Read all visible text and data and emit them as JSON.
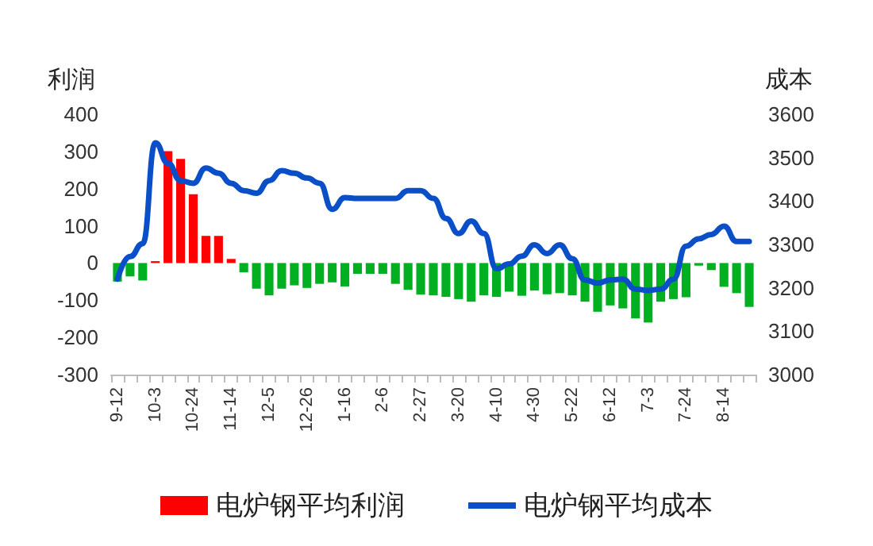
{
  "chart_data": {
    "type": "bar",
    "ylabel": "利润",
    "y2label": "成本",
    "categories": [
      "9-12",
      null,
      null,
      "10-3",
      null,
      null,
      "10-24",
      null,
      null,
      "11-14",
      null,
      null,
      "12-5",
      null,
      null,
      "12-26",
      null,
      null,
      "1-16",
      null,
      null,
      "2-6",
      null,
      null,
      "2-27",
      null,
      null,
      "3-20",
      null,
      null,
      "4-10",
      null,
      null,
      "4-30",
      null,
      null,
      "5-22",
      null,
      null,
      "6-12",
      null,
      null,
      "7-3",
      null,
      null,
      "7-24",
      null,
      null,
      "8-14",
      null,
      null
    ],
    "series": [
      {
        "name": "电炉钢平均利润",
        "color": "#ff0000",
        "colors": [
          "#00b020",
          "#00b020",
          "#00b020",
          "#ff0000",
          "#ff0000",
          "#ff0000",
          "#ff0000",
          "#ff0000",
          "#ff0000",
          "#ff0000",
          "#00b020",
          "#00b020",
          "#00b020",
          "#00b020",
          "#00b020",
          "#00b020",
          "#00b020",
          "#00b020",
          "#00b020",
          "#00b020",
          "#00b020",
          "#00b020",
          "#00b020",
          "#00b020",
          "#00b020",
          "#00b020",
          "#00b020",
          "#00b020",
          "#00b020",
          "#00b020",
          "#00b020",
          "#00b020",
          "#00b020",
          "#00b020",
          "#00b020",
          "#00b020",
          "#00b020",
          "#00b020",
          "#00b020",
          "#00b020",
          "#00b020",
          "#00b020",
          "#00b020",
          "#00b020",
          "#00b020",
          "#00b020",
          "#00b020",
          "#00b020",
          "#00b020",
          "#00b020",
          "#00b020"
        ],
        "values": [
          -50,
          -36,
          -47,
          5,
          301,
          280,
          185,
          73,
          73,
          11,
          -25,
          -69,
          -87,
          -69,
          -60,
          -67,
          -56,
          -52,
          -63,
          -29,
          -29,
          -29,
          -56,
          -72,
          -85,
          -87,
          -91,
          -97,
          -104,
          -87,
          -91,
          -77,
          -88,
          -74,
          -84,
          -81,
          -87,
          -104,
          -131,
          -114,
          -122,
          -149,
          -160,
          -104,
          -97,
          -92,
          -7,
          -19,
          -64,
          -81,
          -118
        ]
      },
      {
        "name": "电炉钢平均成本",
        "type": "line",
        "axis": "y2",
        "color": "#0a4fc8",
        "values": [
          3220,
          3272,
          3302,
          3534,
          3487,
          3447,
          3441,
          3476,
          3464,
          3441,
          3424,
          3418,
          3447,
          3470,
          3464,
          3453,
          3441,
          3381,
          3408,
          3406,
          3406,
          3406,
          3406,
          3424,
          3424,
          3406,
          3360,
          3325,
          3354,
          3325,
          3244,
          3255,
          3273,
          3299,
          3279,
          3299,
          3267,
          3218,
          3211,
          3218,
          3220,
          3197,
          3194,
          3197,
          3220,
          3296,
          3313,
          3323,
          3342,
          3307,
          3307
        ]
      }
    ],
    "ylim": [
      -300,
      400
    ],
    "yticks": [
      -300,
      -200,
      -100,
      0,
      100,
      200,
      300,
      400
    ],
    "y2lim": [
      3000,
      3600
    ],
    "y2ticks": [
      3000,
      3100,
      3200,
      3300,
      3400,
      3500,
      3600
    ],
    "grid": false,
    "legend": "bottom",
    "marker": "none",
    "line_style": "solid"
  }
}
